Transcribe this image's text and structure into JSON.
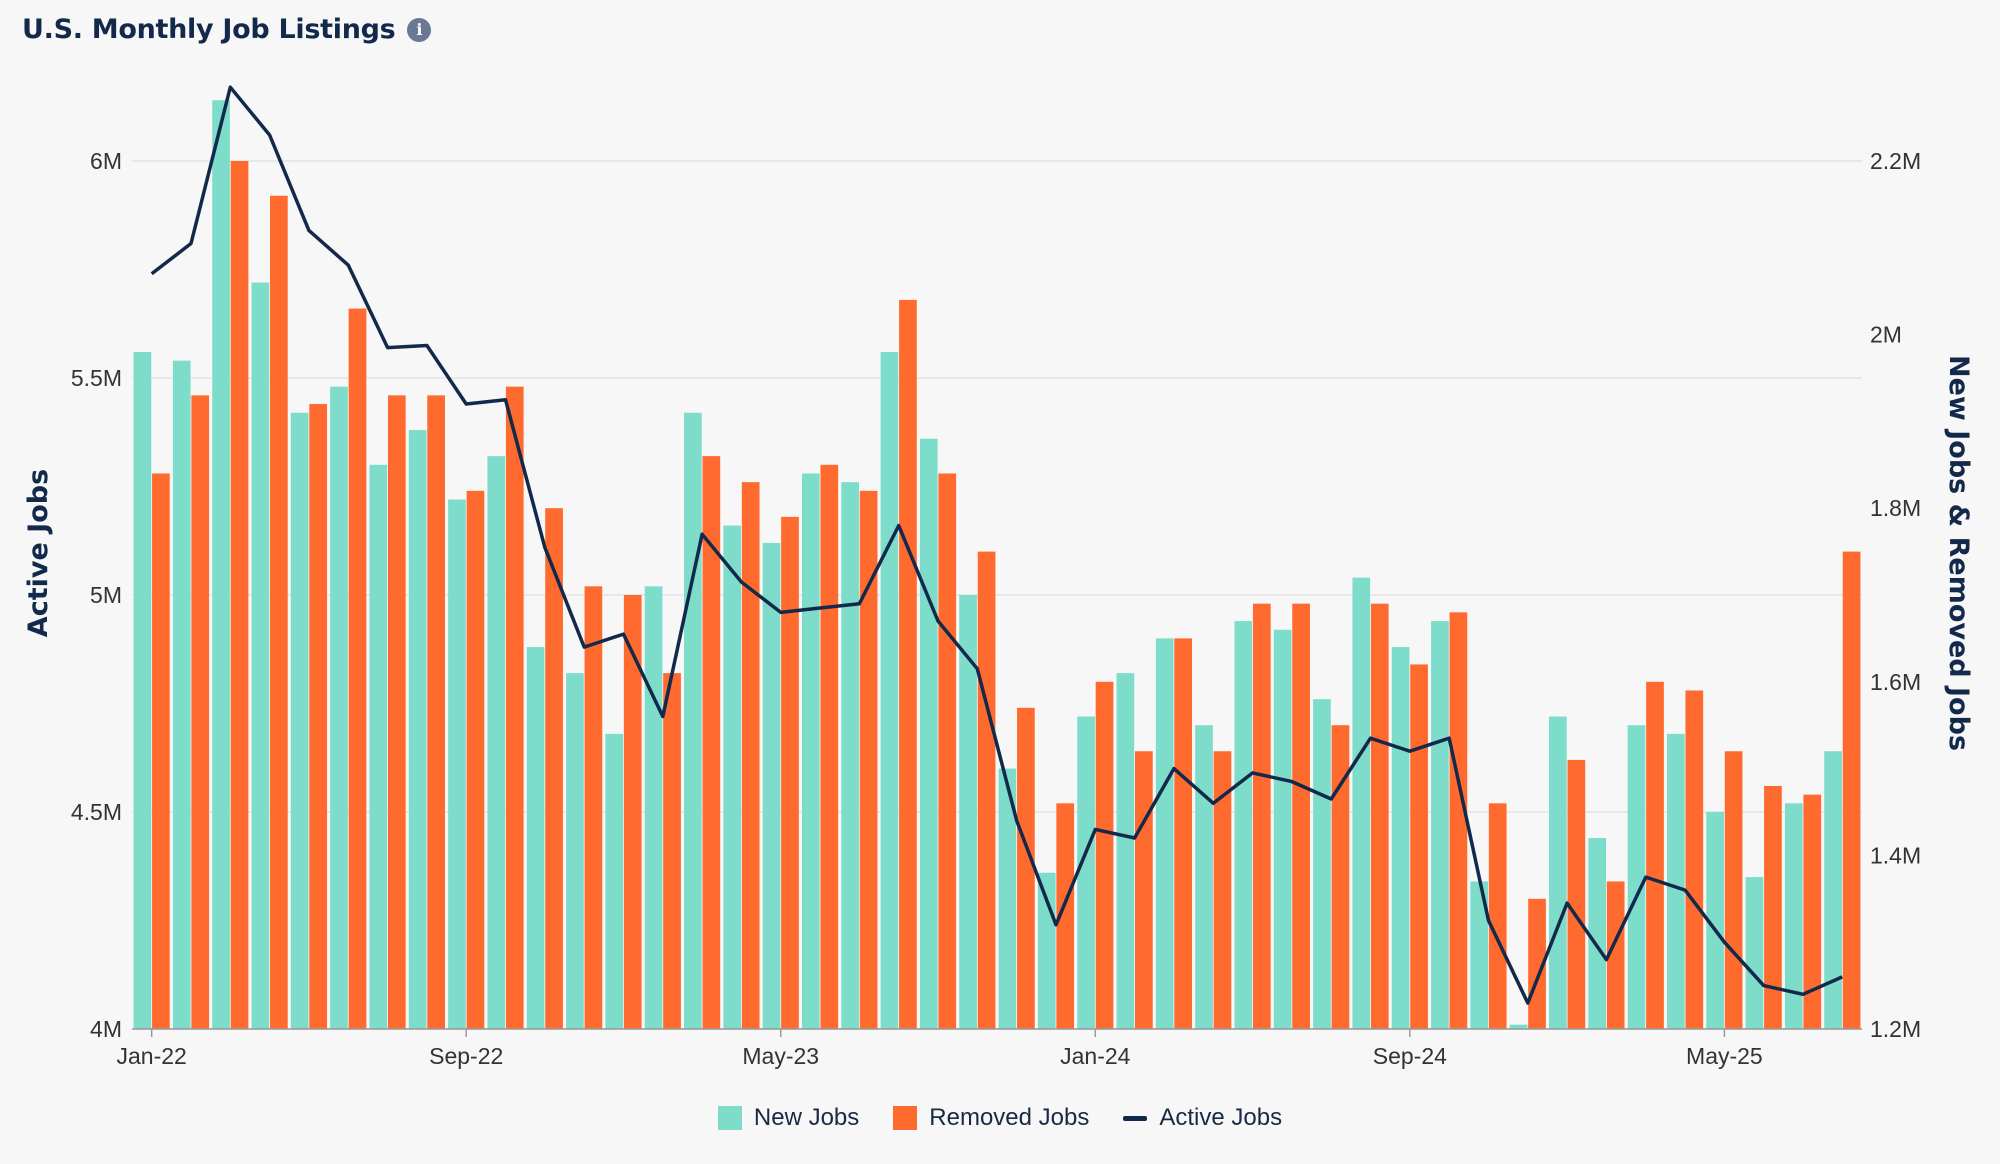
{
  "title": "U.S. Monthly Job Listings",
  "info_icon": "info-icon",
  "colors": {
    "new": "#7edccb",
    "removed": "#ff6a2e",
    "active": "#13294b",
    "grid": "#e3e3e3"
  },
  "chart_data": {
    "type": "bar",
    "title": "U.S. Monthly Job Listings",
    "categories": [
      "Jan-22",
      "Feb-22",
      "Mar-22",
      "Apr-22",
      "May-22",
      "Jun-22",
      "Jul-22",
      "Aug-22",
      "Sep-22",
      "Oct-22",
      "Nov-22",
      "Dec-22",
      "Jan-23",
      "Feb-23",
      "Mar-23",
      "Apr-23",
      "May-23",
      "Jun-23",
      "Jul-23",
      "Aug-23",
      "Sep-23",
      "Oct-23",
      "Nov-23",
      "Dec-23",
      "Jan-24",
      "Feb-24",
      "Mar-24",
      "Apr-24",
      "May-24",
      "Jun-24",
      "Jul-24",
      "Aug-24",
      "Sep-24",
      "Oct-24",
      "Nov-24",
      "Dec-24",
      "Jan-25",
      "Feb-25",
      "Mar-25",
      "Apr-25",
      "May-25",
      "Jun-25",
      "Jul-25",
      "Aug-25"
    ],
    "x_tick_labels": [
      "Jan-22",
      "Sep-22",
      "May-23",
      "Jan-24",
      "Sep-24",
      "May-25"
    ],
    "y_left": {
      "label": "Active Jobs",
      "range": [
        4000000,
        6300000
      ],
      "ticks": [
        4000000,
        4500000,
        5000000,
        5500000,
        6000000
      ],
      "tick_labels": [
        "4M",
        "4.5M",
        "5M",
        "5.5M",
        "6M"
      ]
    },
    "y_right": {
      "label": "New Jobs & Removed Jobs",
      "range": [
        1200000,
        2200000
      ],
      "ticks": [
        1200000,
        1400000,
        1600000,
        1800000,
        2000000,
        2200000
      ],
      "tick_labels": [
        "1.2M",
        "1.4M",
        "1.6M",
        "1.8M",
        "2M",
        "2.2M"
      ]
    },
    "series": [
      {
        "name": "New Jobs",
        "type": "bar",
        "axis": "right",
        "values": [
          1980000,
          1970000,
          2270000,
          2060000,
          1910000,
          1940000,
          1850000,
          1890000,
          1810000,
          1860000,
          1640000,
          1610000,
          1540000,
          1710000,
          1910000,
          1780000,
          1760000,
          1840000,
          1830000,
          1980000,
          1880000,
          1700000,
          1500000,
          1380000,
          1560000,
          1610000,
          1650000,
          1550000,
          1670000,
          1660000,
          1580000,
          1720000,
          1640000,
          1670000,
          1370000,
          1205000,
          1560000,
          1420000,
          1550000,
          1540000,
          1450000,
          1375000,
          1460000,
          1520000
        ]
      },
      {
        "name": "Removed Jobs",
        "type": "bar",
        "axis": "right",
        "values": [
          1840000,
          1930000,
          2200000,
          2160000,
          1920000,
          2030000,
          1930000,
          1930000,
          1820000,
          1940000,
          1800000,
          1710000,
          1700000,
          1610000,
          1860000,
          1830000,
          1790000,
          1850000,
          1820000,
          2040000,
          1840000,
          1750000,
          1570000,
          1460000,
          1600000,
          1520000,
          1650000,
          1520000,
          1690000,
          1690000,
          1550000,
          1690000,
          1620000,
          1680000,
          1460000,
          1350000,
          1510000,
          1370000,
          1600000,
          1590000,
          1520000,
          1480000,
          1470000,
          1750000
        ]
      },
      {
        "name": "Active Jobs",
        "type": "line",
        "axis": "left",
        "values": [
          5740000,
          5810000,
          6170000,
          6060000,
          5840000,
          5760000,
          5570000,
          5575000,
          5440000,
          5450000,
          5110000,
          4880000,
          4910000,
          4720000,
          5140000,
          5030000,
          4960000,
          4970000,
          4980000,
          5160000,
          4940000,
          4830000,
          4480000,
          4240000,
          4460000,
          4440000,
          4600000,
          4520000,
          4590000,
          4570000,
          4530000,
          4670000,
          4640000,
          4670000,
          4250000,
          4060000,
          4290000,
          4160000,
          4350000,
          4320000,
          4200000,
          4100000,
          4080000,
          4120000
        ]
      }
    ],
    "legend": [
      "New Jobs",
      "Removed Jobs",
      "Active Jobs"
    ],
    "legend_position": "bottom-center",
    "grid": true
  }
}
